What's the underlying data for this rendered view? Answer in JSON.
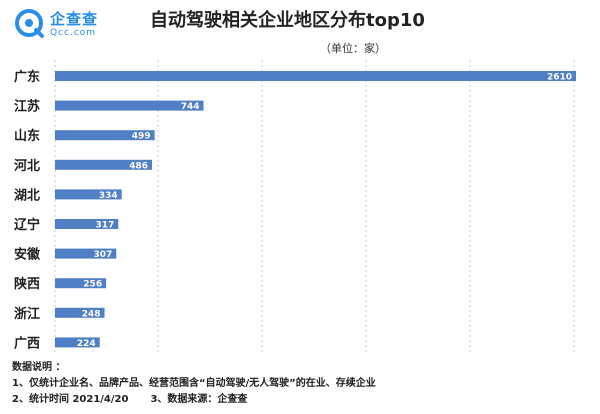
{
  "logo": {
    "name": "企查查",
    "domain": "Qcc.com",
    "color": "#2a8ee6"
  },
  "chart_data": {
    "type": "bar",
    "orientation": "horizontal",
    "title": "自动驾驶相关企业地区分布top10",
    "subtitle": "（单位：家）",
    "categories": [
      "广东",
      "江苏",
      "山东",
      "河北",
      "湖北",
      "辽宁",
      "安徽",
      "陕西",
      "浙江",
      "广西"
    ],
    "values": [
      2610,
      744,
      499,
      486,
      334,
      317,
      307,
      256,
      248,
      224
    ],
    "value_labels": [
      "2610",
      "744",
      "499",
      "486",
      "334",
      "317",
      "307",
      "256",
      "248",
      "224"
    ],
    "xlim": [
      0,
      2610
    ],
    "bar_color": "#4f7fc4",
    "grid": "vertical dashed lines"
  },
  "notes": {
    "heading": "数据说明 ：",
    "line1": "1、仅统计企业名、品牌产品、经营范围含“自动驾驶/无人驾驶”的在业、存续企业",
    "line2a": "2、统计时间  2021/4/20",
    "line2b": "3、数据来源：企查查"
  }
}
